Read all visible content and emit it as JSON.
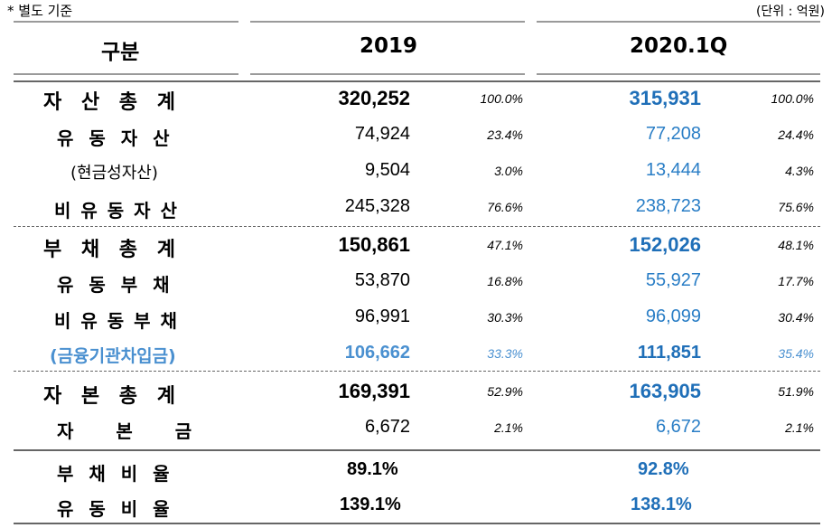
{
  "note": "* 별도 기준",
  "unit": "(단위 : 억원)",
  "headers": {
    "category": "구분",
    "y2019": "2019",
    "y2020": "2020.1Q"
  },
  "rows": [
    {
      "label": "자 산 총 계",
      "v2019": "320,252",
      "p2019": "100.0%",
      "v2020": "315,931",
      "p2020": "100.0%"
    },
    {
      "label": "유 동 자 산",
      "v2019": "74,924",
      "p2019": "23.4%",
      "v2020": "77,208",
      "p2020": "24.4%"
    },
    {
      "label": "(현금성자산)",
      "v2019": "9,504",
      "p2019": "3.0%",
      "v2020": "13,444",
      "p2020": "4.3%"
    },
    {
      "label": "비 유 동 자 산",
      "v2019": "245,328",
      "p2019": "76.6%",
      "v2020": "238,723",
      "p2020": "75.6%"
    },
    {
      "label": "부 채 총 계",
      "v2019": "150,861",
      "p2019": "47.1%",
      "v2020": "152,026",
      "p2020": "48.1%"
    },
    {
      "label": "유 동 부 채",
      "v2019": "53,870",
      "p2019": "16.8%",
      "v2020": "55,927",
      "p2020": "17.7%"
    },
    {
      "label": "비 유 동 부 채",
      "v2019": "96,991",
      "p2019": "30.3%",
      "v2020": "96,099",
      "p2020": "30.4%"
    },
    {
      "label": "(금융기관차입금)",
      "v2019": "106,662",
      "p2019": "33.3%",
      "v2020": "111,851",
      "p2020": "35.4%"
    },
    {
      "label": "자 본 총 계",
      "v2019": "169,391",
      "p2019": "52.9%",
      "v2020": "163,905",
      "p2020": "51.9%"
    },
    {
      "label": "자 본 금",
      "v2019": "6,672",
      "p2019": "2.1%",
      "v2020": "6,672",
      "p2020": "2.1%"
    }
  ],
  "ratios": [
    {
      "label": "부 채 비 율",
      "v2019": "89.1%",
      "v2020": "92.8%"
    },
    {
      "label": "유 동 비 율",
      "v2019": "139.1%",
      "v2020": "138.1%"
    }
  ]
}
